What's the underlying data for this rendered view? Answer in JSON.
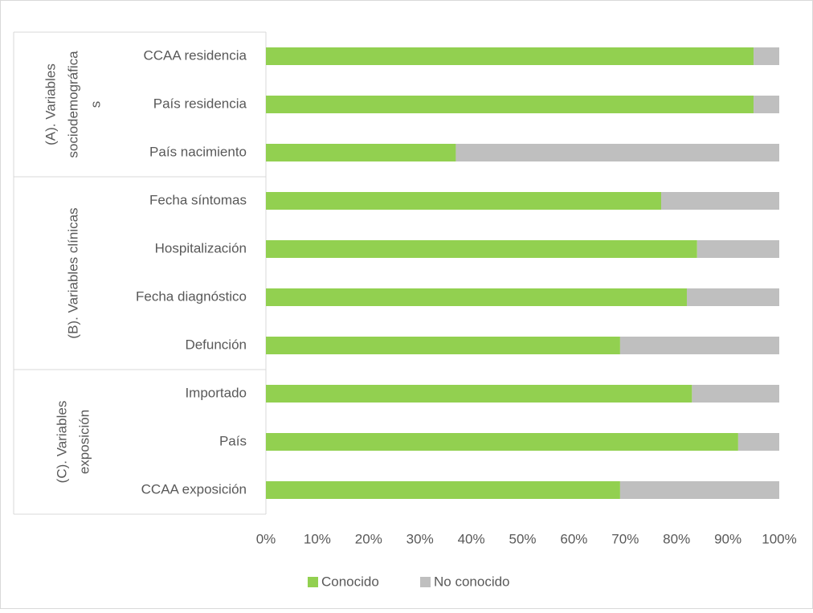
{
  "chart_data": {
    "type": "stacked_barh",
    "groups": [
      {
        "label": [
          "(A). Variables",
          "sociodemográfica",
          "s"
        ],
        "categories": [
          "CCAA residencia",
          "País residencia",
          "País nacimiento"
        ]
      },
      {
        "label": [
          "(B). Variables clínicas"
        ],
        "categories": [
          "Fecha síntomas",
          "Hospitalización",
          "Fecha diagnóstico",
          "Defunción"
        ]
      },
      {
        "label": [
          "(C). Variables",
          "exposición"
        ],
        "categories": [
          "Importado",
          "País",
          "CCAA exposición"
        ]
      }
    ],
    "series": [
      {
        "name": "Conocido",
        "color": "#92d050",
        "values": [
          95,
          95,
          37,
          77,
          84,
          82,
          69,
          83,
          92,
          69
        ]
      },
      {
        "name": "No conocido",
        "color": "#bfbfbf",
        "values": [
          5,
          5,
          63,
          23,
          16,
          18,
          31,
          17,
          8,
          31
        ]
      }
    ],
    "xlim": [
      0,
      100
    ],
    "xticks": [
      {
        "value": 0,
        "label": "0%"
      },
      {
        "value": 10,
        "label": "10%"
      },
      {
        "value": 20,
        "label": "20%"
      },
      {
        "value": 30,
        "label": "30%"
      },
      {
        "value": 40,
        "label": "40%"
      },
      {
        "value": 50,
        "label": "50%"
      },
      {
        "value": 60,
        "label": "60%"
      },
      {
        "value": 70,
        "label": "70%"
      },
      {
        "value": 80,
        "label": "80%"
      },
      {
        "value": 90,
        "label": "90%"
      },
      {
        "value": 100,
        "label": "100%"
      }
    ],
    "legend": "bottom",
    "grid": false
  }
}
